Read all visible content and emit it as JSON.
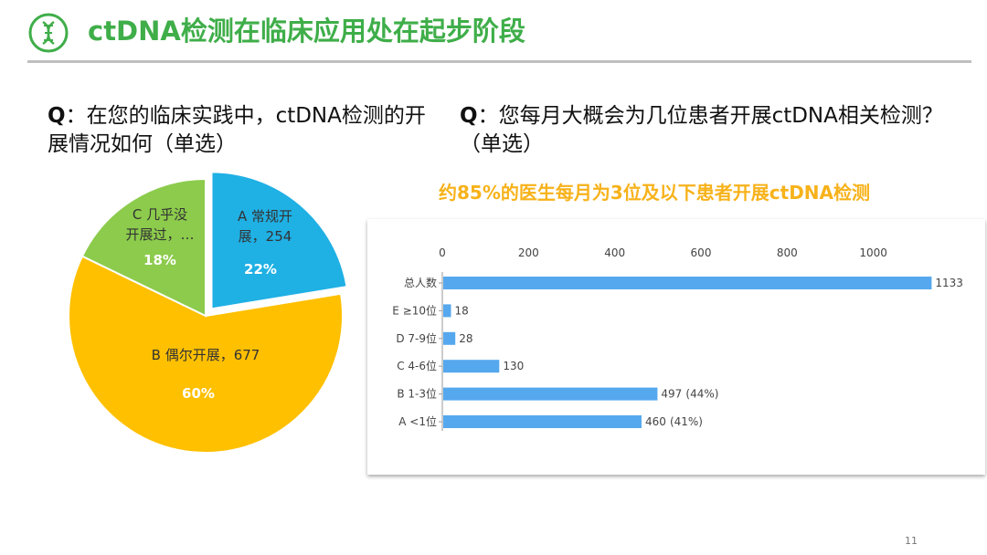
{
  "header": {
    "title": "ctDNA检测在临床应用处在起步阶段",
    "icon": "dna-icon",
    "accent_color": "#3fae49"
  },
  "left_question": {
    "prefix": "Q",
    "text": "：在您的临床实践中，ctDNA检测的开展情况如何（单选）"
  },
  "right_question": {
    "prefix": "Q",
    "text": "：您每月大概会为几位患者开展ctDNA相关检测？（单选）"
  },
  "highlight_text": "约85%的医生每月为3位及以下患者开展ctDNA检测",
  "page_number": "11",
  "chart_data": [
    {
      "type": "pie",
      "slices": [
        {
          "label_line1": "A 常规开",
          "label_line2": "展，254",
          "value": 254,
          "percent_label": "22%",
          "percent": 22,
          "color": "#1fb0e4",
          "exploded": true
        },
        {
          "label_line1": "B 偶尔开展，677",
          "label_line2": "",
          "value": 677,
          "percent_label": "60%",
          "percent": 60,
          "color": "#ffc000",
          "exploded": false
        },
        {
          "label_line1": "C 几乎没",
          "label_line2": "开展过，…",
          "value": 202,
          "percent_label": "18%",
          "percent": 18,
          "color": "#8ccb4c",
          "exploded": false
        }
      ]
    },
    {
      "type": "bar",
      "orientation": "horizontal",
      "categories": [
        "总人数",
        "E ≥10位",
        "D 7-9位",
        "C 4-6位",
        "B 1-3位",
        "A <1位"
      ],
      "values": [
        1133,
        18,
        28,
        130,
        497,
        460
      ],
      "value_labels": [
        "1133",
        "18",
        "28",
        "130",
        "497",
        "460"
      ],
      "percent_labels": [
        "",
        "",
        "",
        "",
        "(44%)",
        "(41%)"
      ],
      "xlim": [
        0,
        1200
      ],
      "xticks": [
        "0",
        "200",
        "400",
        "600",
        "800",
        "1000"
      ],
      "bar_color": "#55a8ee",
      "grid": false
    }
  ]
}
